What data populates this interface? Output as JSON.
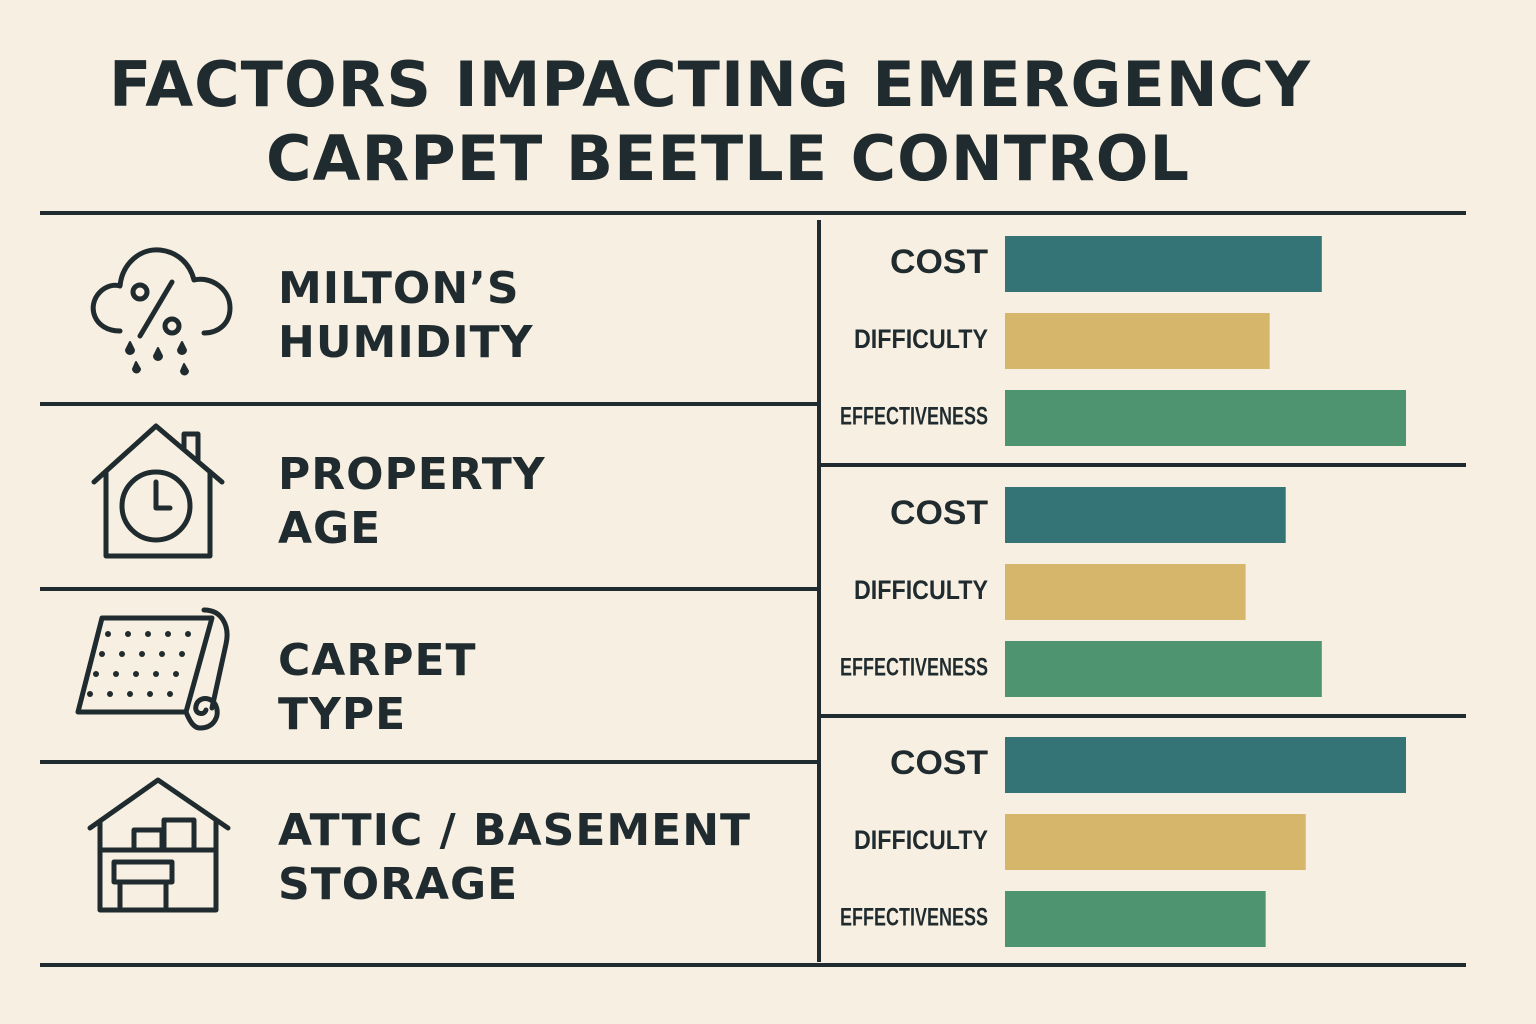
{
  "title": {
    "line1": "FACTORS IMPACTING EMERGENCY",
    "line2": "CARPET BEETLE CONTROL"
  },
  "colors": {
    "background": "#f7efe1",
    "ink": "#1f2b2e",
    "cost": "#347477",
    "difficulty": "#d5b66b",
    "effectiveness": "#4e9470"
  },
  "factors": [
    {
      "icon": "humidity-cloud-icon",
      "line1": "MILTON’S",
      "line2": "HUMIDITY"
    },
    {
      "icon": "house-clock-icon",
      "line1": "PROPERTY",
      "line2": "AGE"
    },
    {
      "icon": "carpet-roll-icon",
      "line1": "CARPET",
      "line2": "TYPE"
    },
    {
      "icon": "house-storage-icon",
      "line1": "ATTIC / BASEMENT",
      "line2": "STORAGE"
    }
  ],
  "chart_data": {
    "type": "bar",
    "orientation": "horizontal",
    "title": "",
    "xlabel": "",
    "ylabel": "",
    "xlim": [
      0,
      100
    ],
    "grid": false,
    "axes_shown": false,
    "categories": [
      "COST",
      "DIFFICULTY",
      "EFFECTIVENESS"
    ],
    "panels": [
      {
        "values": [
          79,
          66,
          100
        ]
      },
      {
        "values": [
          70,
          60,
          79
        ]
      },
      {
        "values": [
          100,
          75,
          65
        ]
      }
    ]
  }
}
